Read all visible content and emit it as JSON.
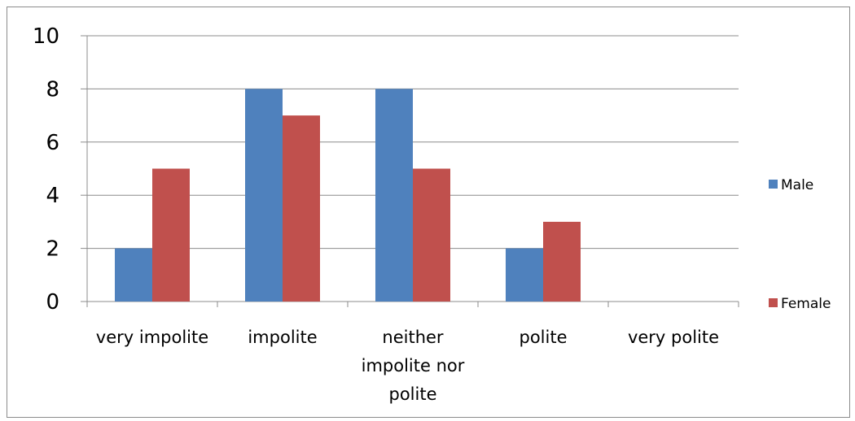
{
  "chart_data": {
    "type": "bar",
    "categories": [
      [
        "very impolite"
      ],
      [
        "impolite"
      ],
      [
        "neither",
        "impolite nor",
        "polite"
      ],
      [
        "polite"
      ],
      [
        "very polite"
      ]
    ],
    "series": [
      {
        "name": "Male",
        "values": [
          2,
          8,
          8,
          2,
          0
        ],
        "color": "#4f81bd"
      },
      {
        "name": "Female",
        "values": [
          5,
          7,
          5,
          3,
          0
        ],
        "color": "#c0504d"
      }
    ],
    "yticks": [
      0,
      2,
      4,
      6,
      8,
      10
    ],
    "ylim": [
      0,
      10
    ],
    "grid": true,
    "legend_position": "right",
    "title": "",
    "xlabel": "",
    "ylabel": ""
  }
}
